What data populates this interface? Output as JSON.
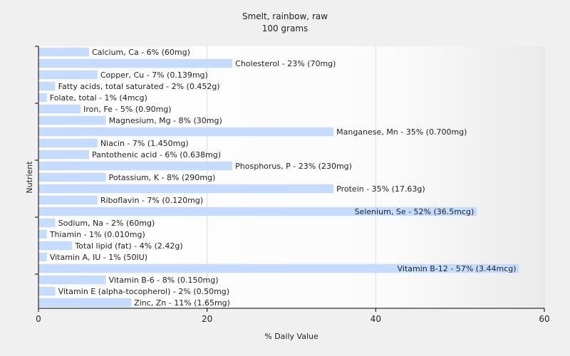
{
  "chart_data": {
    "type": "bar",
    "orientation": "horizontal",
    "title": "Smelt, rainbow, raw",
    "subtitle": "100 grams",
    "xlabel": "% Daily Value",
    "ylabel": "Nutrient",
    "xlim": [
      0,
      60
    ],
    "xticks": [
      0,
      20,
      40,
      60
    ],
    "grid": true,
    "bar_color": "#c6dcff",
    "categories": [
      "Calcium, Ca",
      "Cholesterol",
      "Copper, Cu",
      "Fatty acids, total saturated",
      "Folate, total",
      "Iron, Fe",
      "Magnesium, Mg",
      "Manganese, Mn",
      "Niacin",
      "Pantothenic acid",
      "Phosphorus, P",
      "Potassium, K",
      "Protein",
      "Riboflavin",
      "Selenium, Se",
      "Sodium, Na",
      "Thiamin",
      "Total lipid (fat)",
      "Vitamin A, IU",
      "Vitamin B-12",
      "Vitamin B-6",
      "Vitamin E (alpha-tocopherol)",
      "Zinc, Zn"
    ],
    "values": [
      6,
      23,
      7,
      2,
      1,
      5,
      8,
      35,
      7,
      6,
      23,
      8,
      35,
      7,
      52,
      2,
      1,
      4,
      1,
      57,
      8,
      2,
      11
    ],
    "labels": [
      "Calcium, Ca - 6% (60mg)",
      "Cholesterol - 23% (70mg)",
      "Copper, Cu - 7% (0.139mg)",
      "Fatty acids, total saturated - 2% (0.452g)",
      "Folate, total - 1% (4mcg)",
      "Iron, Fe - 5% (0.90mg)",
      "Magnesium, Mg - 8% (30mg)",
      "Manganese, Mn - 35% (0.700mg)",
      "Niacin - 7% (1.450mg)",
      "Pantothenic acid - 6% (0.638mg)",
      "Phosphorus, P - 23% (230mg)",
      "Potassium, K - 8% (290mg)",
      "Protein - 35% (17.63g)",
      "Riboflavin - 7% (0.120mg)",
      "Selenium, Se - 52% (36.5mcg)",
      "Sodium, Na - 2% (60mg)",
      "Thiamin - 1% (0.010mg)",
      "Total lipid (fat) - 4% (2.42g)",
      "Vitamin A, IU - 1% (50IU)",
      "Vitamin B-12 - 57% (3.44mcg)",
      "Vitamin B-6 - 8% (0.150mg)",
      "Vitamin E (alpha-tocopherol) - 2% (0.50mg)",
      "Zinc, Zn - 11% (1.65mg)"
    ]
  }
}
